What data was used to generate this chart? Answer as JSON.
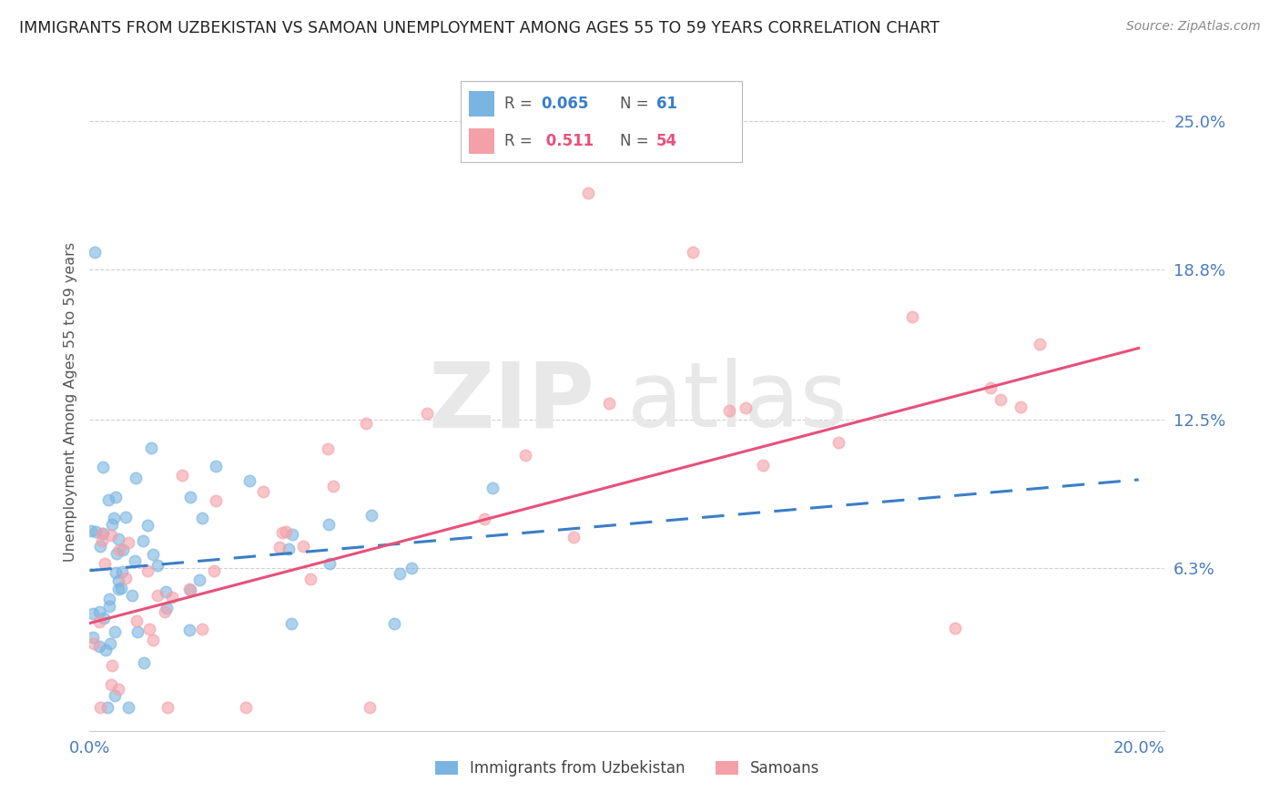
{
  "title": "IMMIGRANTS FROM UZBEKISTAN VS SAMOAN UNEMPLOYMENT AMONG AGES 55 TO 59 YEARS CORRELATION CHART",
  "source": "Source: ZipAtlas.com",
  "ylabel": "Unemployment Among Ages 55 to 59 years",
  "xlim": [
    0.0,
    0.205
  ],
  "ylim": [
    -0.005,
    0.27
  ],
  "ytick_labels": [
    "6.3%",
    "12.5%",
    "18.8%",
    "25.0%"
  ],
  "ytick_positions": [
    0.063,
    0.125,
    0.188,
    0.25
  ],
  "series1_color": "#7ab4e0",
  "series2_color": "#f4a0a8",
  "trendline1_color": "#3a7ec8",
  "trendline2_color": "#e8507a",
  "background_color": "#ffffff",
  "series1_label": "Immigrants from Uzbekistan",
  "series2_label": "Samoans",
  "trendline1_start_y": 0.062,
  "trendline1_end_y": 0.1,
  "trendline2_start_y": 0.04,
  "trendline2_end_y": 0.155
}
